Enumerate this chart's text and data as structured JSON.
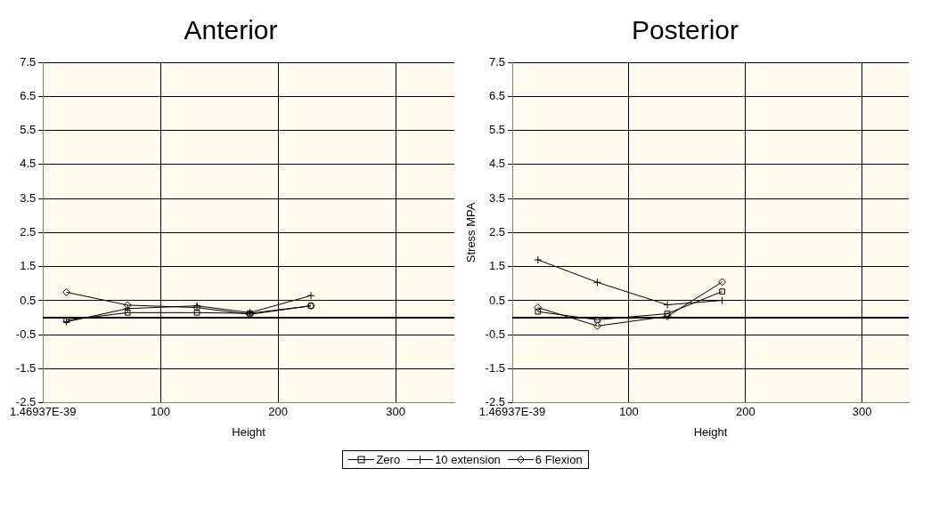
{
  "chart_data": [
    {
      "type": "line",
      "title": "Anterior",
      "xlabel": "Height",
      "xlim": [
        0,
        350
      ],
      "xticks": [
        {
          "value": 0,
          "label": "1.46937E-39"
        },
        100,
        200,
        300
      ],
      "ylim": [
        -2.5,
        7.5
      ],
      "yticks": [
        -2.5,
        -1.5,
        -0.5,
        0.5,
        1.5,
        2.5,
        3.5,
        4.5,
        5.5,
        6.5,
        7.5
      ],
      "grid": true,
      "legend": "bottom",
      "line_style": "solid",
      "ref_lines": [
        {
          "axis": "y",
          "value": 0,
          "color": "#000000"
        }
      ],
      "series": [
        {
          "name": "Zero",
          "color": "#000000",
          "marker": "square",
          "x": [
            20,
            72,
            131,
            176,
            228
          ],
          "values": [
            -0.07,
            0.15,
            0.15,
            0.13,
            0.35
          ]
        },
        {
          "name": "10 extension",
          "color": "#000000",
          "marker": "cross",
          "x": [
            20,
            72,
            131,
            176,
            228
          ],
          "values": [
            -0.12,
            0.27,
            0.35,
            0.15,
            0.65
          ]
        },
        {
          "name": "6 Flexion",
          "color": "#000000",
          "marker": "diamond",
          "x": [
            20,
            72,
            131,
            176,
            228
          ],
          "values": [
            0.75,
            0.37,
            0.3,
            0.1,
            0.35
          ]
        }
      ]
    },
    {
      "type": "line",
      "title": "Posterior",
      "xlabel": "Height",
      "ylabel": "Stress MPA",
      "xlim": [
        0,
        340
      ],
      "xticks": [
        {
          "value": 0,
          "label": "1.46937E-39"
        },
        100,
        200,
        300
      ],
      "ylim": [
        -2.5,
        7.5
      ],
      "yticks": [
        -2.5,
        -1.5,
        -0.5,
        0.5,
        1.5,
        2.5,
        3.5,
        4.5,
        5.5,
        6.5,
        7.5
      ],
      "grid": true,
      "line_style": "solid",
      "ref_lines": [
        {
          "axis": "y",
          "value": 0,
          "color": "#000000"
        }
      ],
      "series": [
        {
          "color": "#000000",
          "marker": "square",
          "x": [
            22,
            73,
            133,
            180
          ],
          "values": [
            0.18,
            -0.06,
            0.12,
            0.77
          ]
        },
        {
          "color": "#000000",
          "marker": "cross",
          "x": [
            22,
            73,
            133,
            180
          ],
          "values": [
            1.7,
            1.04,
            0.38,
            0.51
          ]
        },
        {
          "color": "#000000",
          "marker": "diamond",
          "x": [
            22,
            73,
            133,
            180
          ],
          "values": [
            0.3,
            -0.24,
            0.04,
            1.05
          ]
        }
      ]
    }
  ]
}
